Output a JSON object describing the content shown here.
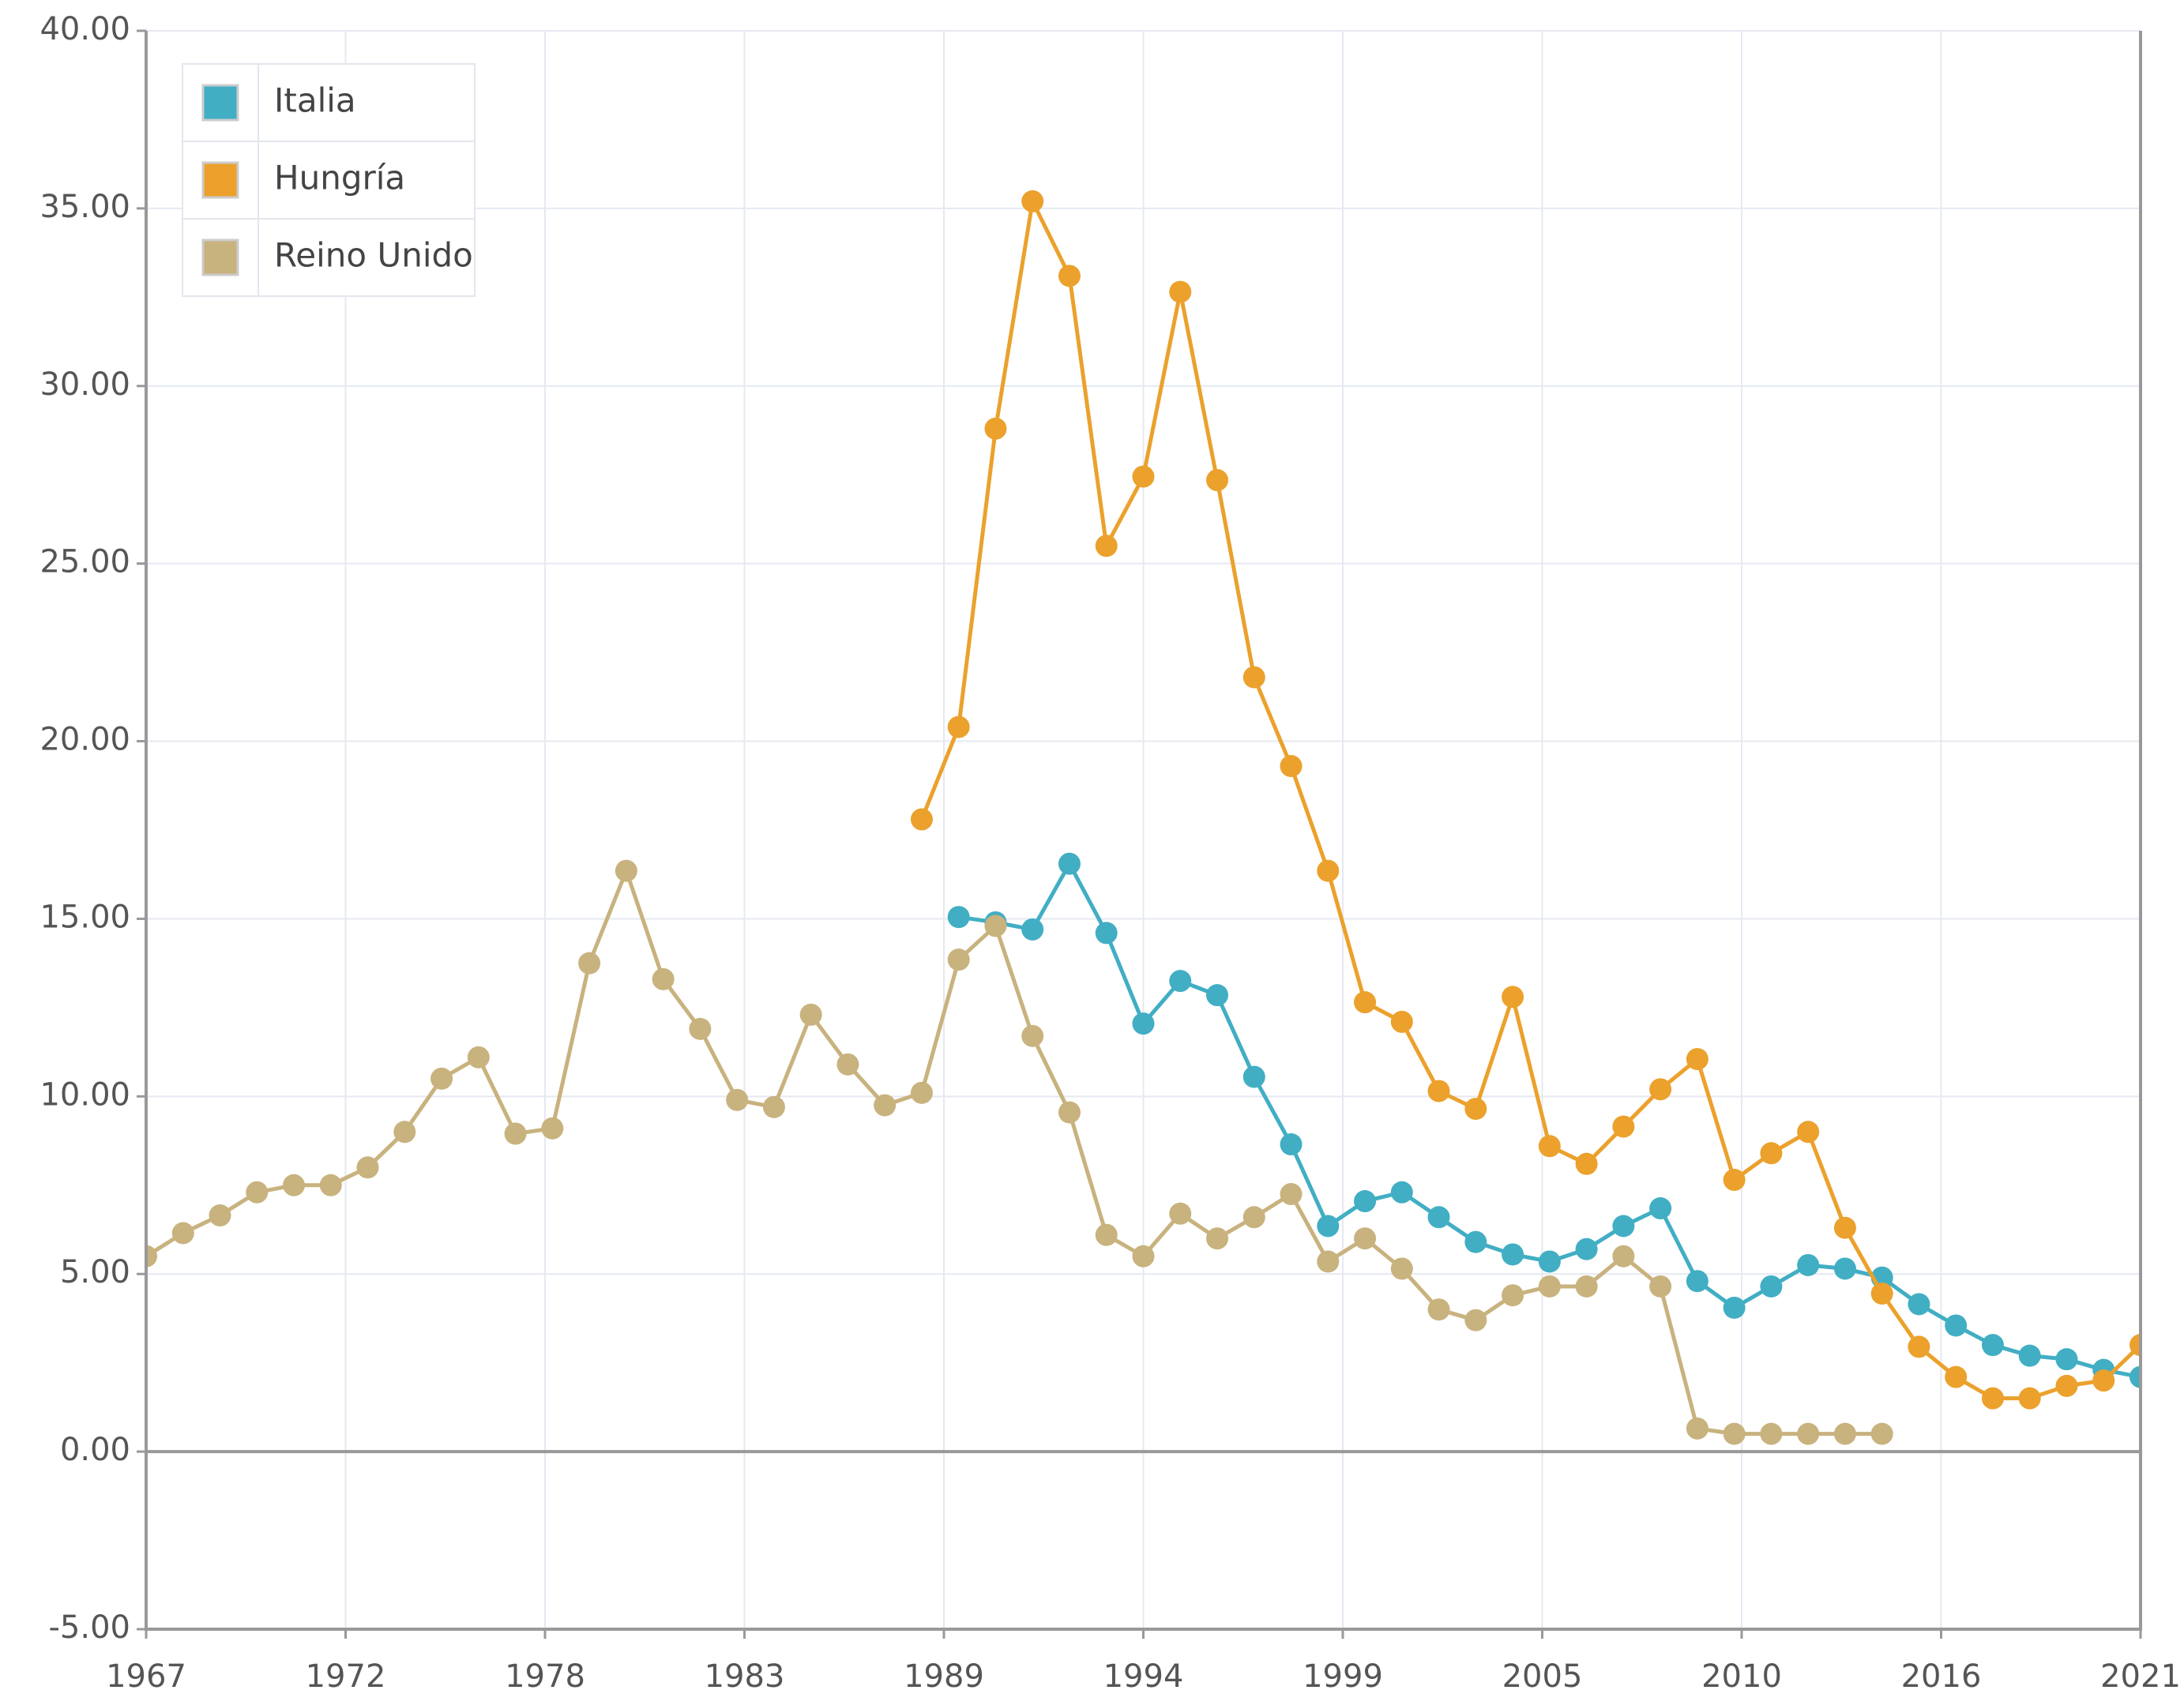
{
  "chart_data": {
    "type": "line",
    "x": [
      1967,
      1968,
      1969,
      1970,
      1971,
      1972,
      1973,
      1974,
      1975,
      1976,
      1977,
      1978,
      1979,
      1980,
      1981,
      1982,
      1983,
      1984,
      1985,
      1986,
      1987,
      1988,
      1989,
      1990,
      1991,
      1992,
      1993,
      1994,
      1995,
      1996,
      1997,
      1998,
      1999,
      2000,
      2001,
      2002,
      2003,
      2004,
      2005,
      2006,
      2007,
      2008,
      2009,
      2010,
      2011,
      2012,
      2013,
      2014,
      2015,
      2016,
      2017,
      2018,
      2019,
      2020,
      2021
    ],
    "series": [
      {
        "name": "Italia",
        "color": "#41aec4",
        "values": [
          null,
          null,
          null,
          null,
          null,
          null,
          null,
          null,
          null,
          null,
          null,
          null,
          null,
          null,
          null,
          null,
          null,
          null,
          null,
          null,
          null,
          null,
          15.05,
          14.9,
          14.7,
          16.55,
          14.6,
          12.05,
          13.25,
          12.85,
          10.55,
          8.65,
          6.35,
          7.05,
          7.3,
          6.6,
          5.9,
          5.55,
          5.35,
          5.7,
          6.35,
          6.85,
          4.8,
          4.05,
          4.65,
          5.25,
          5.15,
          4.9,
          4.15,
          3.55,
          3.0,
          2.7,
          2.6,
          2.3,
          2.1
        ]
      },
      {
        "name": "Hungría",
        "color": "#eba12c",
        "values": [
          null,
          null,
          null,
          null,
          null,
          null,
          null,
          null,
          null,
          null,
          null,
          null,
          null,
          null,
          null,
          null,
          null,
          null,
          null,
          null,
          null,
          17.8,
          20.4,
          28.8,
          35.2,
          33.1,
          25.5,
          27.45,
          32.65,
          27.35,
          21.8,
          19.3,
          16.35,
          12.65,
          12.1,
          10.15,
          9.65,
          12.8,
          8.6,
          8.1,
          9.15,
          10.2,
          11.05,
          7.65,
          8.4,
          9.0,
          6.3,
          4.45,
          2.95,
          2.1,
          1.5,
          1.5,
          1.85,
          2.0,
          3.0
        ]
      },
      {
        "name": "Reino Unido",
        "color": "#c8b27e",
        "values": [
          5.5,
          6.15,
          6.65,
          7.3,
          7.5,
          7.5,
          8.0,
          9.0,
          10.5,
          11.1,
          8.95,
          9.1,
          13.75,
          16.35,
          13.3,
          11.9,
          9.9,
          9.7,
          12.3,
          10.9,
          9.75,
          10.1,
          13.85,
          14.8,
          11.7,
          9.55,
          6.1,
          5.5,
          6.7,
          6.0,
          6.6,
          7.25,
          5.35,
          6.0,
          5.15,
          4.0,
          3.7,
          4.4,
          4.65,
          4.65,
          5.5,
          4.65,
          0.65,
          0.5,
          0.5,
          0.5,
          0.5,
          0.5,
          null,
          null,
          null,
          null,
          null,
          null,
          null
        ]
      }
    ],
    "xlim": [
      1967,
      2021
    ],
    "xticks": [
      {
        "value": 1967,
        "label": "1967"
      },
      {
        "value": 1972.4,
        "label": "1972"
      },
      {
        "value": 1977.8,
        "label": "1978"
      },
      {
        "value": 1983.2,
        "label": "1983"
      },
      {
        "value": 1988.6,
        "label": "1989"
      },
      {
        "value": 1994,
        "label": "1994"
      },
      {
        "value": 1999.4,
        "label": "1999"
      },
      {
        "value": 2004.8,
        "label": "2005"
      },
      {
        "value": 2010.2,
        "label": "2010"
      },
      {
        "value": 2015.6,
        "label": "2016"
      },
      {
        "value": 2021,
        "label": "2021"
      }
    ],
    "ylim": [
      -5,
      40
    ],
    "yticks": [
      {
        "value": -5,
        "label": "-5.00"
      },
      {
        "value": 0,
        "label": "0.00"
      },
      {
        "value": 5,
        "label": "5.00"
      },
      {
        "value": 10,
        "label": "10.00"
      },
      {
        "value": 15,
        "label": "15.00"
      },
      {
        "value": 20,
        "label": "20.00"
      },
      {
        "value": 25,
        "label": "25.00"
      },
      {
        "value": 30,
        "label": "30.00"
      },
      {
        "value": 35,
        "label": "35.00"
      },
      {
        "value": 40,
        "label": "40.00"
      }
    ],
    "grid": true,
    "legend": "top-left"
  }
}
